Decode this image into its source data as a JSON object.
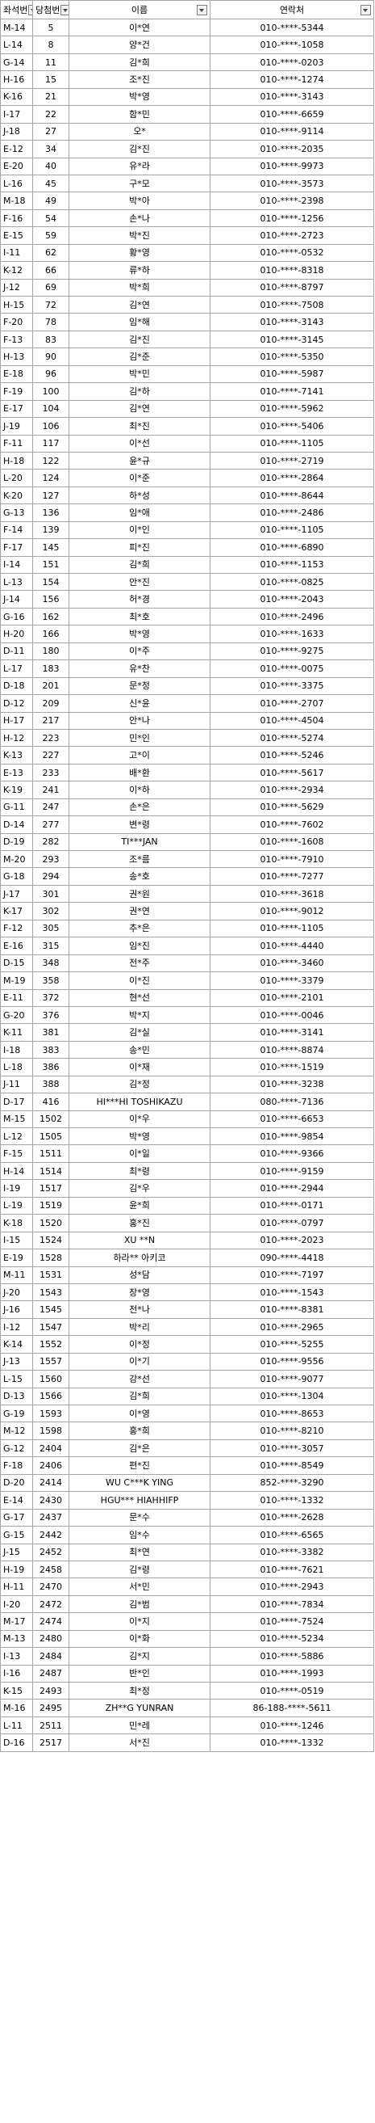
{
  "headers": {
    "seat": "좌석번",
    "winning": "당첨번",
    "name": "이름",
    "contact": "연락처"
  },
  "rows": [
    [
      "M-14",
      "5",
      "이*연",
      "010-****-5344"
    ],
    [
      "L-14",
      "8",
      "양*건",
      "010-****-1058"
    ],
    [
      "G-14",
      "11",
      "김*희",
      "010-****-0203"
    ],
    [
      "H-16",
      "15",
      "조*진",
      "010-****-1274"
    ],
    [
      "K-16",
      "21",
      "박*영",
      "010-****-3143"
    ],
    [
      "I-17",
      "22",
      "함*민",
      "010-****-6659"
    ],
    [
      "J-18",
      "27",
      "오*",
      "010-****-9114"
    ],
    [
      "E-12",
      "34",
      "김*진",
      "010-****-2035"
    ],
    [
      "E-20",
      "40",
      "유*라",
      "010-****-9973"
    ],
    [
      "L-16",
      "45",
      "구*모",
      "010-****-3573"
    ],
    [
      "M-18",
      "49",
      "박*아",
      "010-****-2398"
    ],
    [
      "F-16",
      "54",
      "손*나",
      "010-****-1256"
    ],
    [
      "E-15",
      "59",
      "박*진",
      "010-****-2723"
    ],
    [
      "I-11",
      "62",
      "황*영",
      "010-****-0532"
    ],
    [
      "K-12",
      "66",
      "류*하",
      "010-****-8318"
    ],
    [
      "J-12",
      "69",
      "박*희",
      "010-****-8797"
    ],
    [
      "H-15",
      "72",
      "김*연",
      "010-****-7508"
    ],
    [
      "F-20",
      "78",
      "임*해",
      "010-****-3143"
    ],
    [
      "F-13",
      "83",
      "김*진",
      "010-****-3145"
    ],
    [
      "H-13",
      "90",
      "김*준",
      "010-****-5350"
    ],
    [
      "E-18",
      "96",
      "박*민",
      "010-****-5987"
    ],
    [
      "F-19",
      "100",
      "김*하",
      "010-****-7141"
    ],
    [
      "E-17",
      "104",
      "김*연",
      "010-****-5962"
    ],
    [
      "J-19",
      "106",
      "최*진",
      "010-****-5406"
    ],
    [
      "F-11",
      "117",
      "이*선",
      "010-****-1105"
    ],
    [
      "H-18",
      "122",
      "윤*규",
      "010-****-2719"
    ],
    [
      "L-20",
      "124",
      "이*준",
      "010-****-2864"
    ],
    [
      "K-20",
      "127",
      "하*성",
      "010-****-8644"
    ],
    [
      "G-13",
      "136",
      "임*애",
      "010-****-2486"
    ],
    [
      "F-14",
      "139",
      "이*인",
      "010-****-1105"
    ],
    [
      "F-17",
      "145",
      "피*진",
      "010-****-6890"
    ],
    [
      "I-14",
      "151",
      "김*희",
      "010-****-1153"
    ],
    [
      "L-13",
      "154",
      "안*진",
      "010-****-0825"
    ],
    [
      "J-14",
      "156",
      "허*경",
      "010-****-2043"
    ],
    [
      "G-16",
      "162",
      "최*호",
      "010-****-2496"
    ],
    [
      "H-20",
      "166",
      "박*영",
      "010-****-1633"
    ],
    [
      "D-11",
      "180",
      "이*주",
      "010-****-9275"
    ],
    [
      "L-17",
      "183",
      "유*찬",
      "010-****-0075"
    ],
    [
      "D-18",
      "201",
      "문*정",
      "010-****-3375"
    ],
    [
      "D-12",
      "209",
      "신*윤",
      "010-****-2707"
    ],
    [
      "H-17",
      "217",
      "안*나",
      "010-****-4504"
    ],
    [
      "H-12",
      "223",
      "민*인",
      "010-****-5274"
    ],
    [
      "K-13",
      "227",
      "고*이",
      "010-****-5246"
    ],
    [
      "E-13",
      "233",
      "배*환",
      "010-****-5617"
    ],
    [
      "K-19",
      "241",
      "이*하",
      "010-****-2934"
    ],
    [
      "G-11",
      "247",
      "손*은",
      "010-****-5629"
    ],
    [
      "D-14",
      "277",
      "변*령",
      "010-****-7602"
    ],
    [
      "D-19",
      "282",
      "TI***JAN",
      "010-****-1608"
    ],
    [
      "M-20",
      "293",
      "조*름",
      "010-****-7910"
    ],
    [
      "G-18",
      "294",
      "송*호",
      "010-****-7277"
    ],
    [
      "J-17",
      "301",
      "권*원",
      "010-****-3618"
    ],
    [
      "K-17",
      "302",
      "권*연",
      "010-****-9012"
    ],
    [
      "F-12",
      "305",
      "추*은",
      "010-****-1105"
    ],
    [
      "E-16",
      "315",
      "임*진",
      "010-****-4440"
    ],
    [
      "D-15",
      "348",
      "전*주",
      "010-****-3460"
    ],
    [
      "M-19",
      "358",
      "이*진",
      "010-****-3379"
    ],
    [
      "E-11",
      "372",
      "현*선",
      "010-****-2101"
    ],
    [
      "G-20",
      "376",
      "박*지",
      "010-****-0046"
    ],
    [
      "K-11",
      "381",
      "김*실",
      "010-****-3141"
    ],
    [
      "I-18",
      "383",
      "송*민",
      "010-****-8874"
    ],
    [
      "L-18",
      "386",
      "이*재",
      "010-****-1519"
    ],
    [
      "J-11",
      "388",
      "김*정",
      "010-****-3238"
    ],
    [
      "D-17",
      "416",
      "HI***HI TOSHIKAZU",
      "080-****-7136"
    ],
    [
      "M-15",
      "1502",
      "이*우",
      "010-****-6653"
    ],
    [
      "L-12",
      "1505",
      "박*영",
      "010-****-9854"
    ],
    [
      "F-15",
      "1511",
      "이*일",
      "010-****-9366"
    ],
    [
      "H-14",
      "1514",
      "최*령",
      "010-****-9159"
    ],
    [
      "I-19",
      "1517",
      "김*우",
      "010-****-2944"
    ],
    [
      "L-19",
      "1519",
      "윤*희",
      "010-****-0171"
    ],
    [
      "K-18",
      "1520",
      "홍*진",
      "010-****-0797"
    ],
    [
      "I-15",
      "1524",
      "XU **N",
      "010-****-2023"
    ],
    [
      "E-19",
      "1528",
      "하라** 아키코",
      "090-****-4418"
    ],
    [
      "M-11",
      "1531",
      "성*담",
      "010-****-7197"
    ],
    [
      "J-20",
      "1543",
      "장*영",
      "010-****-1543"
    ],
    [
      "J-16",
      "1545",
      "전*나",
      "010-****-8381"
    ],
    [
      "I-12",
      "1547",
      "박*리",
      "010-****-2965"
    ],
    [
      "K-14",
      "1552",
      "이*정",
      "010-****-5255"
    ],
    [
      "J-13",
      "1557",
      "이*기",
      "010-****-9556"
    ],
    [
      "L-15",
      "1560",
      "강*선",
      "010-****-9077"
    ],
    [
      "D-13",
      "1566",
      "김*희",
      "010-****-1304"
    ],
    [
      "G-19",
      "1593",
      "이*영",
      "010-****-8653"
    ],
    [
      "M-12",
      "1598",
      "홍*희",
      "010-****-8210"
    ],
    [
      "G-12",
      "2404",
      "김*은",
      "010-****-3057"
    ],
    [
      "F-18",
      "2406",
      "편*진",
      "010-****-8549"
    ],
    [
      "D-20",
      "2414",
      "WU C***K YING",
      "852-****-3290"
    ],
    [
      "E-14",
      "2430",
      "HGU*** HIAHHIFP",
      "010-****-1332"
    ],
    [
      "G-17",
      "2437",
      "문*수",
      "010-****-2628"
    ],
    [
      "G-15",
      "2442",
      "임*수",
      "010-****-6565"
    ],
    [
      "J-15",
      "2452",
      "최*연",
      "010-****-3382"
    ],
    [
      "H-19",
      "2458",
      "김*령",
      "010-****-7621"
    ],
    [
      "H-11",
      "2470",
      "서*민",
      "010-****-2943"
    ],
    [
      "I-20",
      "2472",
      "김*범",
      "010-****-7834"
    ],
    [
      "M-17",
      "2474",
      "이*지",
      "010-****-7524"
    ],
    [
      "M-13",
      "2480",
      "이*화",
      "010-****-5234"
    ],
    [
      "I-13",
      "2484",
      "김*지",
      "010-****-5886"
    ],
    [
      "I-16",
      "2487",
      "반*인",
      "010-****-1993"
    ],
    [
      "K-15",
      "2493",
      "최*정",
      "010-****-0519"
    ],
    [
      "M-16",
      "2495",
      "ZH**G YUNRAN",
      "86-188-****-5611"
    ],
    [
      "L-11",
      "2511",
      "민*레",
      "010-****-1246"
    ],
    [
      "D-16",
      "2517",
      "서*진",
      "010-****-1332"
    ]
  ]
}
